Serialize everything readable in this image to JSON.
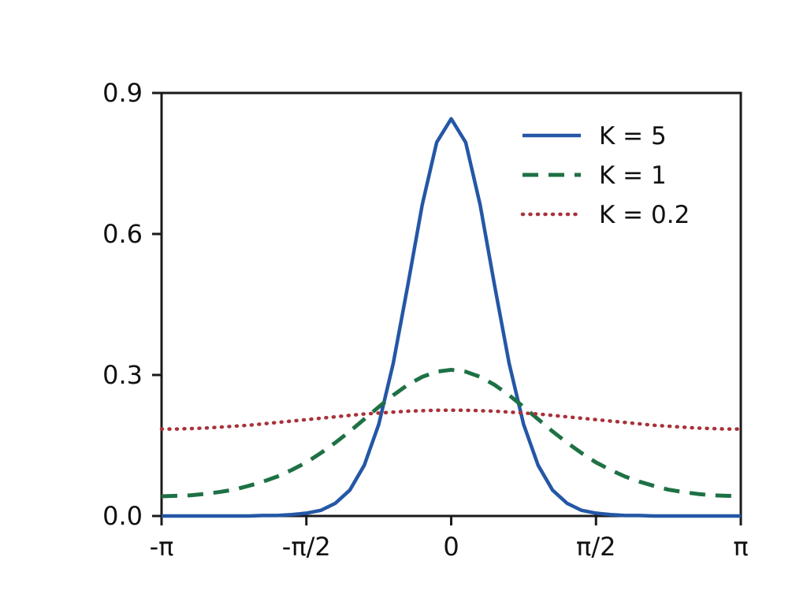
{
  "figure": {
    "background": "#ffffff",
    "axis_color": "#1a1a1a",
    "text_color": "#111111"
  },
  "chart_data": {
    "type": "line",
    "title": "",
    "xlabel": "",
    "ylabel": "",
    "x_unit": "radians (multiples of pi)",
    "xlim": [
      -1,
      1
    ],
    "ylim": [
      0,
      0.9
    ],
    "grid": false,
    "legend_position": "top-right",
    "x_ticks": [
      {
        "value": -1,
        "label": "-π"
      },
      {
        "value": -0.5,
        "label": "-π/2"
      },
      {
        "value": 0,
        "label": "0"
      },
      {
        "value": 0.5,
        "label": "π/2"
      },
      {
        "value": 1,
        "label": "π"
      }
    ],
    "y_ticks": [
      {
        "value": 0,
        "label": "0.0"
      },
      {
        "value": 0.3,
        "label": "0.3"
      },
      {
        "value": 0.6,
        "label": "0.6"
      },
      {
        "value": 0.9,
        "label": "0.9"
      }
    ],
    "x": [
      -1,
      -0.95,
      -0.9,
      -0.85,
      -0.8,
      -0.75,
      -0.7,
      -0.65,
      -0.6,
      -0.55,
      -0.5,
      -0.45,
      -0.4,
      -0.35,
      -0.3,
      -0.25,
      -0.2,
      -0.15,
      -0.1,
      -0.05,
      0,
      0.05,
      0.1,
      0.15,
      0.2,
      0.25,
      0.3,
      0.35,
      0.4,
      0.45,
      0.5,
      0.55,
      0.6,
      0.65,
      0.7,
      0.75,
      0.8,
      0.85,
      0.9,
      0.95,
      1
    ],
    "series": [
      {
        "name": "K = 5",
        "color": "#2457a5",
        "style": "solid",
        "width": 4.5,
        "values": [
          0,
          0,
          0,
          0,
          0,
          0,
          0,
          0.001,
          0.001,
          0.003,
          0.006,
          0.012,
          0.027,
          0.055,
          0.108,
          0.195,
          0.325,
          0.49,
          0.662,
          0.795,
          0.845,
          0.795,
          0.662,
          0.49,
          0.325,
          0.195,
          0.108,
          0.055,
          0.027,
          0.012,
          0.006,
          0.003,
          0.001,
          0.001,
          0,
          0,
          0,
          0,
          0,
          0,
          0
        ]
      },
      {
        "name": "K = 1",
        "color": "#1e7145",
        "style": "dashed",
        "width": 5,
        "values": [
          0.042,
          0.043,
          0.044,
          0.047,
          0.051,
          0.056,
          0.064,
          0.073,
          0.084,
          0.098,
          0.114,
          0.134,
          0.156,
          0.18,
          0.206,
          0.232,
          0.257,
          0.279,
          0.296,
          0.307,
          0.311,
          0.307,
          0.296,
          0.279,
          0.257,
          0.232,
          0.206,
          0.18,
          0.156,
          0.134,
          0.114,
          0.098,
          0.084,
          0.073,
          0.064,
          0.056,
          0.051,
          0.047,
          0.044,
          0.043,
          0.042
        ]
      },
      {
        "name": "K = 0.2",
        "color": "#a8323a",
        "style": "dotted",
        "width": 4.5,
        "values": [
          0.185,
          0.185,
          0.186,
          0.187,
          0.189,
          0.191,
          0.193,
          0.196,
          0.199,
          0.202,
          0.205,
          0.208,
          0.211,
          0.214,
          0.217,
          0.219,
          0.221,
          0.223,
          0.224,
          0.225,
          0.225,
          0.225,
          0.224,
          0.223,
          0.221,
          0.219,
          0.217,
          0.214,
          0.211,
          0.208,
          0.205,
          0.202,
          0.199,
          0.196,
          0.193,
          0.191,
          0.189,
          0.187,
          0.186,
          0.185,
          0.185
        ]
      }
    ]
  }
}
